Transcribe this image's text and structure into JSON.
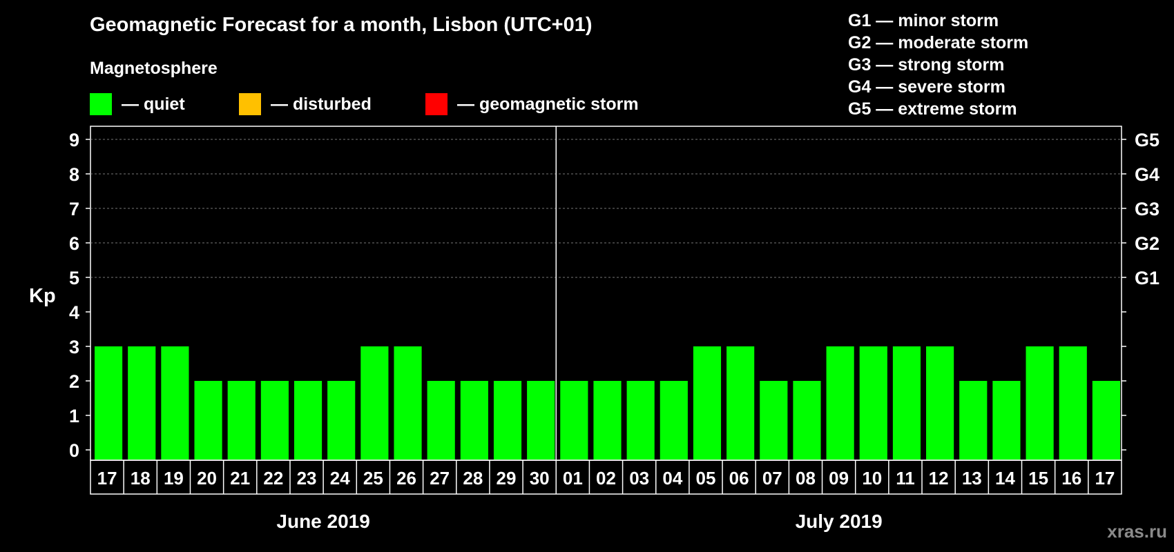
{
  "title": "Geomagnetic Forecast for a month, Lisbon (UTC+01)",
  "subtitle": "Magnetosphere",
  "legend": [
    {
      "color": "#00ff00",
      "label": "— quiet"
    },
    {
      "color": "#ffc000",
      "label": "— disturbed"
    },
    {
      "color": "#ff0000",
      "label": "— geomagnetic storm"
    }
  ],
  "storm_levels": [
    "G1 — minor storm",
    "G2 — moderate storm",
    "G3 — strong storm",
    "G4 — severe storm",
    "G5 — extreme storm"
  ],
  "watermark": "xras.ru",
  "chart_data": {
    "type": "bar",
    "title": "Geomagnetic Forecast for a month, Lisbon (UTC+01)",
    "ylabel": "Kp",
    "ylim": [
      0,
      9
    ],
    "yticks": [
      "0",
      "1",
      "2",
      "3",
      "4",
      "5",
      "6",
      "7",
      "8",
      "9"
    ],
    "right_ticks": [
      {
        "value": 5,
        "label": "G1"
      },
      {
        "value": 6,
        "label": "G2"
      },
      {
        "value": 7,
        "label": "G3"
      },
      {
        "value": 8,
        "label": "G4"
      },
      {
        "value": 9,
        "label": "G5"
      }
    ],
    "categories": [
      "17",
      "18",
      "19",
      "20",
      "21",
      "22",
      "23",
      "24",
      "25",
      "26",
      "27",
      "28",
      "29",
      "30",
      "01",
      "02",
      "03",
      "04",
      "05",
      "06",
      "07",
      "08",
      "09",
      "10",
      "11",
      "12",
      "13",
      "14",
      "15",
      "16",
      "17"
    ],
    "values": [
      3,
      3,
      3,
      2,
      2,
      2,
      2,
      2,
      3,
      3,
      2,
      2,
      2,
      2,
      2,
      2,
      2,
      2,
      3,
      3,
      2,
      2,
      3,
      3,
      3,
      3,
      2,
      2,
      3,
      3,
      2
    ],
    "bar_color": "#00ff00",
    "months": [
      {
        "label": "June 2019",
        "start": 0,
        "end": 13
      },
      {
        "label": "July 2019",
        "start": 14,
        "end": 30
      }
    ],
    "grid": true
  }
}
